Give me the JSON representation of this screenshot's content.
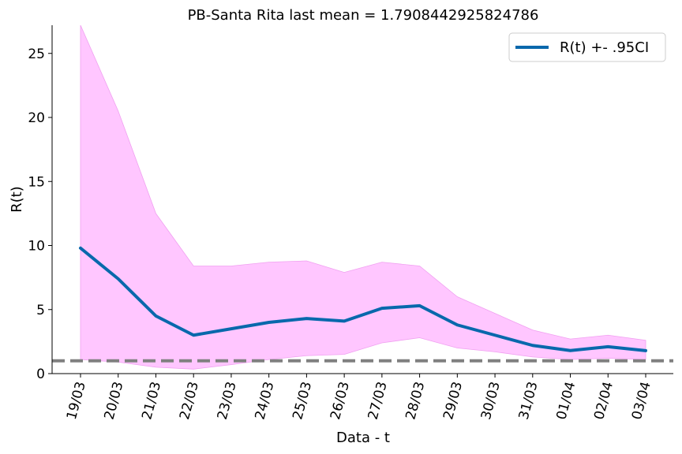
{
  "chart_data": {
    "type": "line",
    "title": "PB-Santa Rita last mean = 1.7908442925824786",
    "xlabel": "Data - t",
    "ylabel": "R(t)",
    "categories": [
      "19/03",
      "20/03",
      "21/03",
      "22/03",
      "23/03",
      "24/03",
      "25/03",
      "26/03",
      "27/03",
      "28/03",
      "29/03",
      "30/03",
      "31/03",
      "01/04",
      "02/04",
      "03/04"
    ],
    "ylim": [
      0,
      27.2
    ],
    "yticks": [
      0,
      5,
      10,
      15,
      20,
      25
    ],
    "series": [
      {
        "name": "R(t) +- .95CI",
        "values": [
          9.8,
          7.4,
          4.5,
          3.0,
          3.5,
          4.0,
          4.3,
          4.1,
          5.1,
          5.3,
          3.8,
          3.0,
          2.2,
          1.8,
          2.1,
          1.79
        ],
        "lower": [
          1.1,
          0.9,
          0.5,
          0.35,
          0.7,
          1.1,
          1.4,
          1.5,
          2.4,
          2.8,
          2.0,
          1.7,
          1.3,
          1.1,
          1.2,
          1.1
        ],
        "upper": [
          27.2,
          20.5,
          12.5,
          8.4,
          8.4,
          8.7,
          8.8,
          7.9,
          8.7,
          8.4,
          6.0,
          4.7,
          3.4,
          2.7,
          3.0,
          2.6
        ],
        "color": "#0868ac",
        "band_color": "#ffc6ff"
      }
    ],
    "reference_line": {
      "value": 1,
      "color": "#808080",
      "style": "dashed"
    },
    "legend_position": "top-right",
    "grid": false
  }
}
